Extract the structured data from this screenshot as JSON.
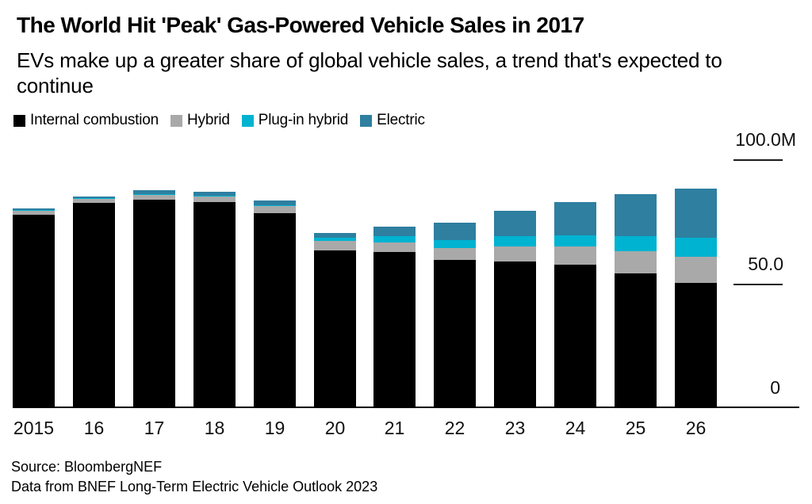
{
  "title": "The World Hit 'Peak' Gas-Powered Vehicle Sales in 2017",
  "subtitle_lines": [
    "EVs make up a greater share of global vehicle sales, a trend that's expected to",
    "continue"
  ],
  "chart_data": {
    "type": "bar",
    "stacked": true,
    "unit": "million vehicles",
    "categories": [
      "2015",
      "16",
      "17",
      "18",
      "19",
      "20",
      "21",
      "22",
      "23",
      "24",
      "25",
      "26"
    ],
    "series": [
      {
        "name": "Internal combustion",
        "color": "#000000",
        "values": [
          78.1,
          82.6,
          83.9,
          83.2,
          78.7,
          63.5,
          62.8,
          59.6,
          59.0,
          57.7,
          54.2,
          50.6
        ]
      },
      {
        "name": "Hybrid",
        "color": "#a9a9a9",
        "values": [
          1.6,
          1.9,
          2.1,
          2.1,
          2.8,
          3.9,
          4.0,
          5.0,
          6.1,
          7.4,
          8.9,
          10.3
        ]
      },
      {
        "name": "Plug-in hybrid",
        "color": "#00b3d1",
        "values": [
          0.3,
          0.3,
          0.3,
          0.4,
          0.4,
          1.3,
          2.5,
          3.0,
          4.3,
          4.5,
          6.3,
          7.7
        ]
      },
      {
        "name": "Electric",
        "color": "#2e7fa0",
        "values": [
          0.5,
          0.6,
          1.5,
          1.6,
          1.8,
          1.9,
          4.0,
          7.2,
          10.2,
          13.5,
          16.9,
          19.9
        ]
      }
    ],
    "ylim": [
      0,
      100
    ],
    "yticks": [
      {
        "value": 0,
        "label": "0"
      },
      {
        "value": 50,
        "label": "50.0"
      },
      {
        "value": 100,
        "label": "100.0M"
      }
    ],
    "legend_position": "top-left",
    "grid": false
  },
  "source_lines": [
    "Source: BloombergNEF",
    "Data from BNEF Long-Term Electric Vehicle Outlook 2023"
  ]
}
